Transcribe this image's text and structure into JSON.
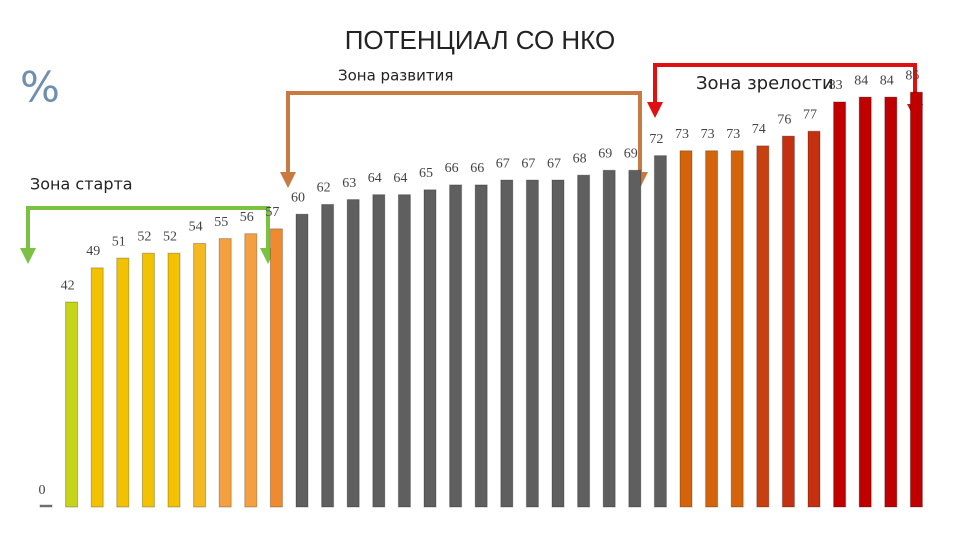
{
  "chart_data": {
    "type": "bar",
    "title": "ПОТЕНЦИАЛ СО НКО",
    "unit": "%",
    "annotations": [
      "Зона старта",
      "Зона развития",
      "Зона зрелости"
    ],
    "values": [
      0,
      42,
      49,
      51,
      52,
      52,
      54,
      55,
      56,
      57,
      60,
      62,
      63,
      64,
      64,
      65,
      66,
      66,
      67,
      67,
      67,
      68,
      69,
      69,
      72,
      73,
      73,
      73,
      74,
      76,
      77,
      83,
      84,
      84,
      85
    ],
    "colors": [
      "#7f7f7f",
      "#c8d41a",
      "#f2c200",
      "#f2c200",
      "#f2c200",
      "#f2c200",
      "#f4b820",
      "#f4a040",
      "#f4a040",
      "#ef8a2e",
      "#5f5f5f",
      "#5f5f5f",
      "#5f5f5f",
      "#5f5f5f",
      "#5f5f5f",
      "#5f5f5f",
      "#5f5f5f",
      "#5f5f5f",
      "#5f5f5f",
      "#5f5f5f",
      "#5f5f5f",
      "#5f5f5f",
      "#5f5f5f",
      "#5f5f5f",
      "#5f5f5f",
      "#d4640c",
      "#d4640c",
      "#d4640c",
      "#c84010",
      "#c43010",
      "#c43010",
      "#c00000",
      "#c00000",
      "#c00000",
      "#c00000"
    ],
    "ylim": [
      0,
      100
    ]
  }
}
